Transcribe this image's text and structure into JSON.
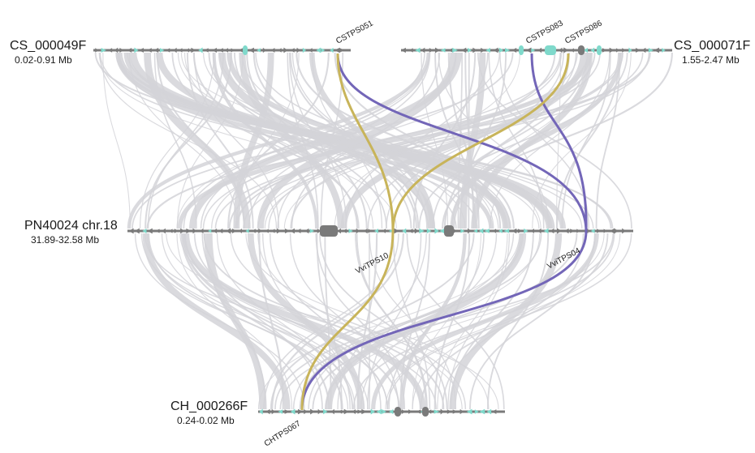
{
  "tracks": {
    "cs49": {
      "name": "CS_000049F",
      "range": "0.02-0.91 Mb"
    },
    "cs71": {
      "name": "CS_000071F",
      "range": "1.55-2.47 Mb"
    },
    "pn": {
      "name": "PN40024 chr.18",
      "range": "31.89-32.58 Mb"
    },
    "ch": {
      "name": "CH_000266F",
      "range": "0.24-0.02 Mb"
    }
  },
  "genes": {
    "cstps051": "CSTPS051",
    "cstps083": "CSTPS083",
    "cstps086": "CSTPS086",
    "vvitps10": "VviTPS10",
    "vvitps04": "VviTPS04",
    "chtps067": "CHTPS067"
  },
  "colors": {
    "track": "#7a7a7a",
    "gene_teal": "#7fd9cb",
    "link_gray": "#d4d4d8",
    "link_olive": "#c8b45a",
    "link_purple": "#7366b8"
  }
}
